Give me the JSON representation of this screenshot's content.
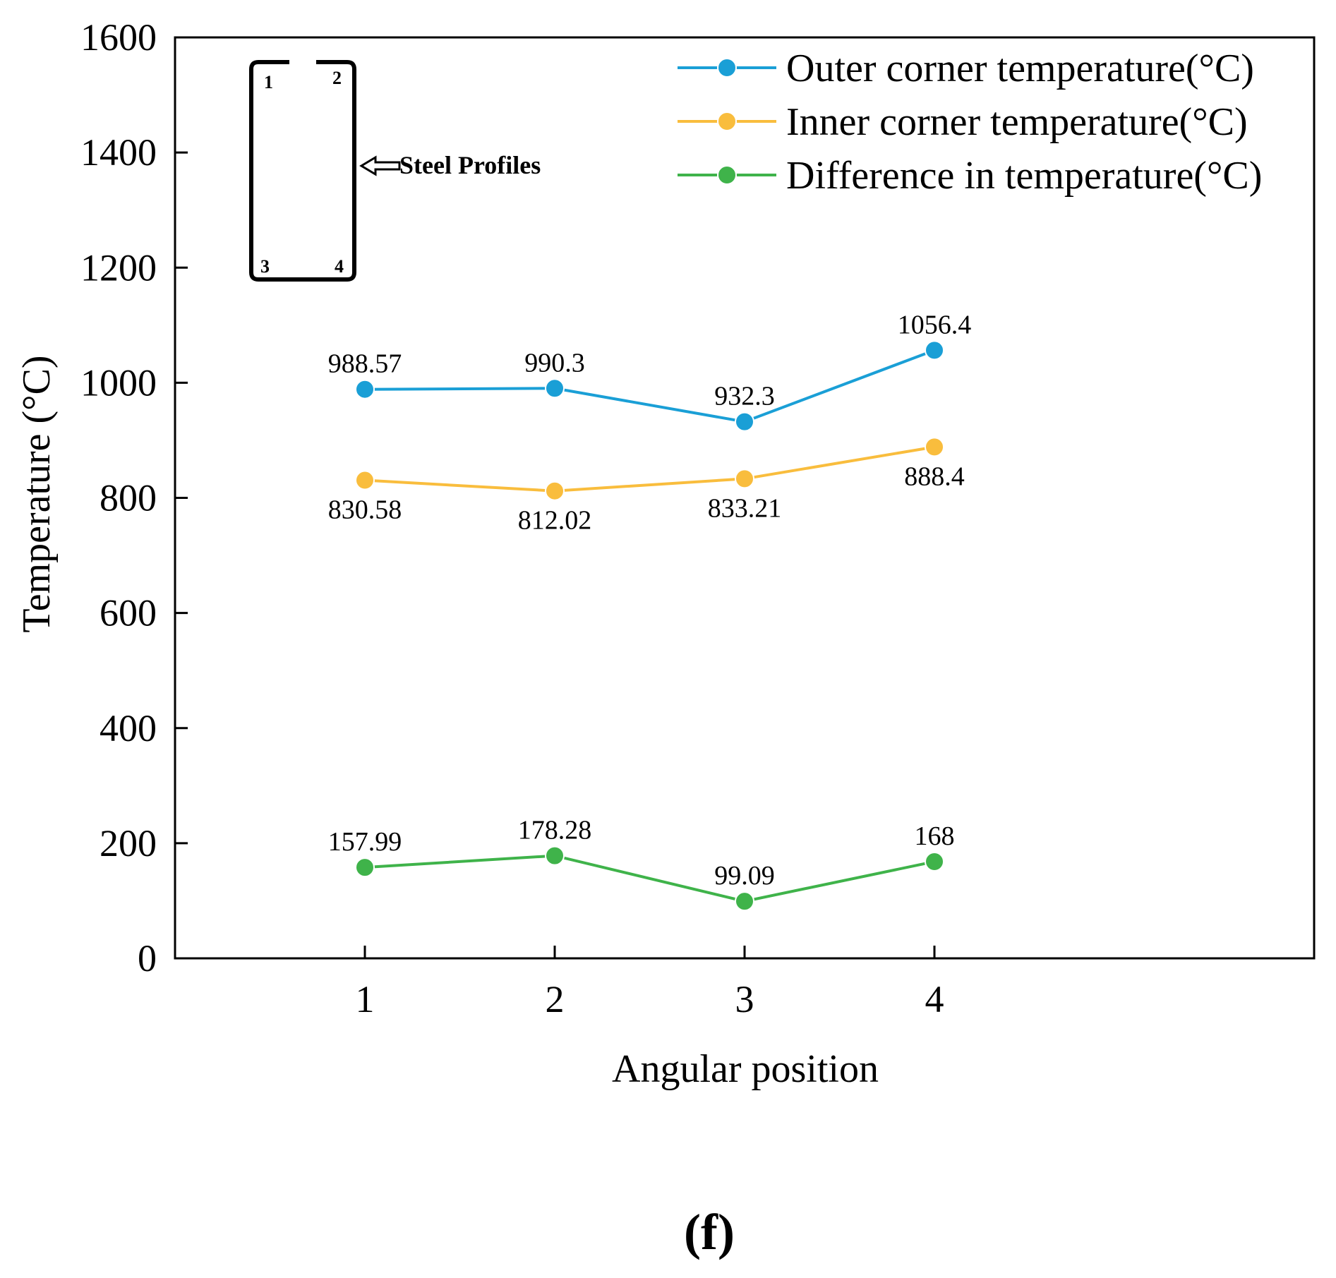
{
  "chart_data": {
    "type": "line",
    "title": "",
    "xlabel": "Angular position",
    "ylabel": "Temperature (°C)",
    "x": [
      1,
      2,
      3,
      4
    ],
    "x_tick_labels": [
      "1",
      "2",
      "3",
      "4"
    ],
    "xlim": [
      0,
      6
    ],
    "ylim": [
      0,
      1600
    ],
    "y_ticks": [
      0,
      200,
      400,
      600,
      800,
      1000,
      1200,
      1400,
      1600
    ],
    "y_tick_labels": [
      "0",
      "200",
      "400",
      "600",
      "800",
      "1000",
      "1200",
      "1400",
      "1600"
    ],
    "grid": false,
    "legend_position": "top-right",
    "series": [
      {
        "name": "Outer corner temperature(°C)",
        "color": "#1a9fd6",
        "values": [
          988.57,
          990.3,
          932.3,
          1056.4
        ],
        "labels": [
          "988.57",
          "990.3",
          "932.3",
          "1056.4"
        ],
        "label_sides": [
          "above",
          "above",
          "above",
          "above"
        ]
      },
      {
        "name": "Inner corner temperature(°C)",
        "color": "#f9bd3d",
        "values": [
          830.58,
          812.02,
          833.21,
          888.4
        ],
        "labels": [
          "830.58",
          "812.02",
          "833.21",
          "888.4"
        ],
        "label_sides": [
          "below",
          "below",
          "below",
          "below"
        ]
      },
      {
        "name": "Difference in temperature(°C)",
        "color": "#3fb34a",
        "values": [
          157.99,
          178.28,
          99.09,
          168
        ],
        "labels": [
          "157.99",
          "178.28",
          "99.09",
          "168"
        ],
        "label_sides": [
          "above",
          "above",
          "above",
          "above"
        ]
      }
    ],
    "inset": {
      "title": "Steel Profiles",
      "corner_labels": [
        "1",
        "2",
        "3",
        "4"
      ]
    },
    "panel_label": "(f)"
  }
}
